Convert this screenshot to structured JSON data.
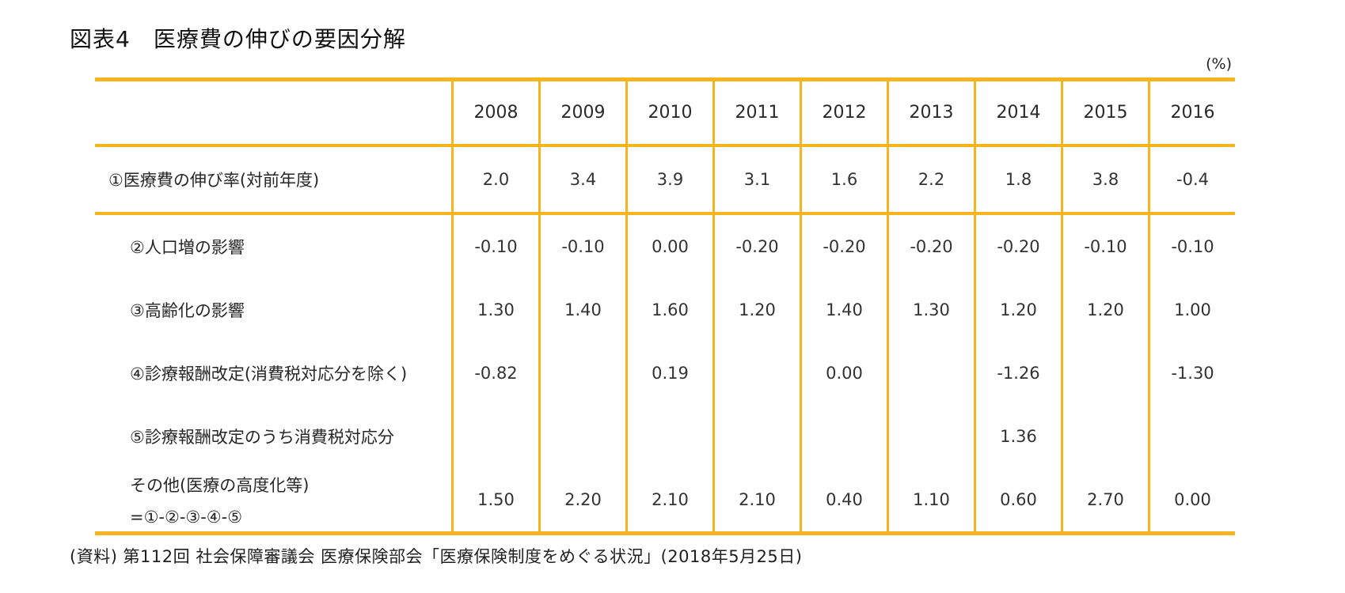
{
  "title": "図表4　医療費の伸びの要因分解",
  "unit_label": "(%)",
  "source_note": "(資料) 第112回 社会保障審議会 医療保険部会「医療保険制度をめぐる状況」(2018年5月25日)",
  "colors": {
    "accent_gold": "#F6B51E",
    "text": "#2b2b2b"
  },
  "chart_data": {
    "type": "table",
    "title": "図表4　医療費の伸びの要因分解",
    "unit": "%",
    "columns": [
      "2008",
      "2009",
      "2010",
      "2011",
      "2012",
      "2013",
      "2014",
      "2015",
      "2016"
    ],
    "rows": [
      {
        "label": "①医療費の伸び率(対前年度)",
        "values": [
          "2.0",
          "3.4",
          "3.9",
          "3.1",
          "1.6",
          "2.2",
          "1.8",
          "3.8",
          "-0.4"
        ]
      },
      {
        "label": "②人口増の影響",
        "values": [
          "-0.10",
          "-0.10",
          "0.00",
          "-0.20",
          "-0.20",
          "-0.20",
          "-0.20",
          "-0.10",
          "-0.10"
        ]
      },
      {
        "label": "③高齢化の影響",
        "values": [
          "1.30",
          "1.40",
          "1.60",
          "1.20",
          "1.40",
          "1.30",
          "1.20",
          "1.20",
          "1.00"
        ]
      },
      {
        "label": "④診療報酬改定(消費税対応分を除く)",
        "values": [
          "-0.82",
          "",
          "0.19",
          "",
          "0.00",
          "",
          "-1.26",
          "",
          "-1.30"
        ]
      },
      {
        "label": "⑤診療報酬改定のうち消費税対応分",
        "values": [
          "",
          "",
          "",
          "",
          "",
          "",
          "1.36",
          "",
          ""
        ]
      },
      {
        "label": "その他(医療の高度化等)",
        "label2": "=①-②-③-④-⑤",
        "values": [
          "1.50",
          "2.20",
          "2.10",
          "2.10",
          "0.40",
          "1.10",
          "0.60",
          "2.70",
          "0.00"
        ]
      }
    ]
  }
}
